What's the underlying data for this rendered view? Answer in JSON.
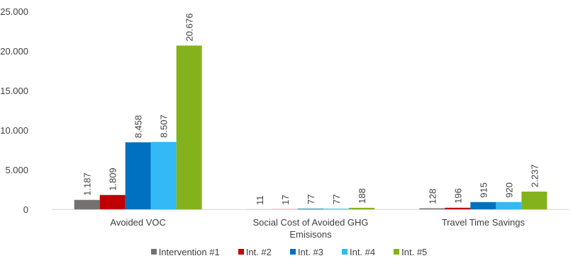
{
  "chart_data": {
    "type": "bar",
    "categories": [
      [
        "Avoided VOC"
      ],
      [
        "Social Cost of Avoided GHG",
        "Emisisons"
      ],
      [
        "Travel Time Savings"
      ]
    ],
    "series": [
      {
        "name": "Intervention #1",
        "color": "#767171",
        "values": [
          1187,
          11,
          128
        ],
        "labels": [
          "1.187",
          "11",
          "128"
        ]
      },
      {
        "name": "Int. #2",
        "color": "#C00000",
        "values": [
          1809,
          17,
          196
        ],
        "labels": [
          "1.809",
          "17",
          "196"
        ]
      },
      {
        "name": "Int. #3",
        "color": "#0070C0",
        "values": [
          8458,
          77,
          915
        ],
        "labels": [
          "8.458",
          "77",
          "915"
        ]
      },
      {
        "name": "Int. #4",
        "color": "#33B9F5",
        "values": [
          8507,
          77,
          920
        ],
        "labels": [
          "8.507",
          "77",
          "920"
        ]
      },
      {
        "name": "Int. #5",
        "color": "#84B21C",
        "values": [
          20676,
          188,
          2237
        ],
        "labels": [
          "20.676",
          "188",
          "2.237"
        ]
      }
    ],
    "yticks": [
      0,
      5000,
      10000,
      15000,
      20000,
      25000
    ],
    "ytick_labels": [
      "0",
      "5.000",
      "10.000",
      "15.000",
      "20.000",
      "25.000"
    ],
    "ylim": [
      0,
      25000
    ],
    "grid": false,
    "legend": "bottom",
    "title": "",
    "xlabel": "",
    "ylabel": ""
  }
}
